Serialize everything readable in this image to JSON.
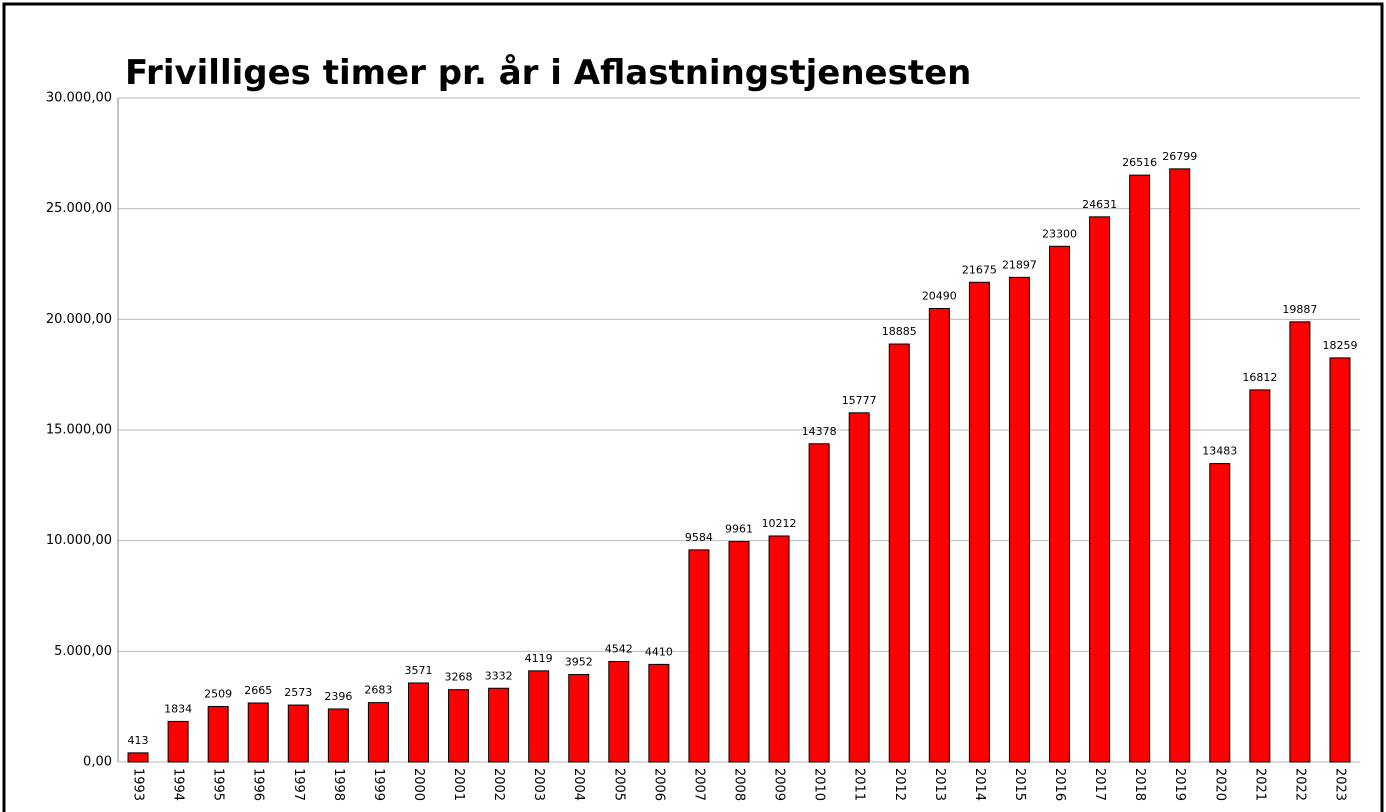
{
  "chart_data": {
    "type": "bar",
    "title": "Frivilliges timer pr. år i Aflastningstjenesten",
    "categories": [
      "1993",
      "1994",
      "1995",
      "1996",
      "1997",
      "1998",
      "1999",
      "2000",
      "2001",
      "2002",
      "2003",
      "2004",
      "2005",
      "2006",
      "2007",
      "2008",
      "2009",
      "2010",
      "2011",
      "2012",
      "2013",
      "2014",
      "2015",
      "2016",
      "2017",
      "2018",
      "2019",
      "2020",
      "2021",
      "2022",
      "2023"
    ],
    "values": [
      413,
      1834,
      2509,
      2665,
      2573,
      2396,
      2683,
      3571,
      3268,
      3332,
      4119,
      3952,
      4542,
      4410,
      9584,
      9961,
      10212,
      14378,
      15777,
      18885,
      20490,
      21675,
      21897,
      23300,
      24631,
      26516,
      26799,
      13483,
      16812,
      19887,
      18259
    ],
    "color": "#ff0000",
    "ylim": [
      0,
      30000
    ],
    "yticks": [
      {
        "value": 0,
        "label": "0,00"
      },
      {
        "value": 5000,
        "label": "5.000,00"
      },
      {
        "value": 10000,
        "label": "10.000,00"
      },
      {
        "value": 15000,
        "label": "15.000,00"
      },
      {
        "value": 20000,
        "label": "20.000,00"
      },
      {
        "value": 25000,
        "label": "25.000,00"
      },
      {
        "value": 30000,
        "label": "30.000,00"
      }
    ],
    "grid": true
  }
}
